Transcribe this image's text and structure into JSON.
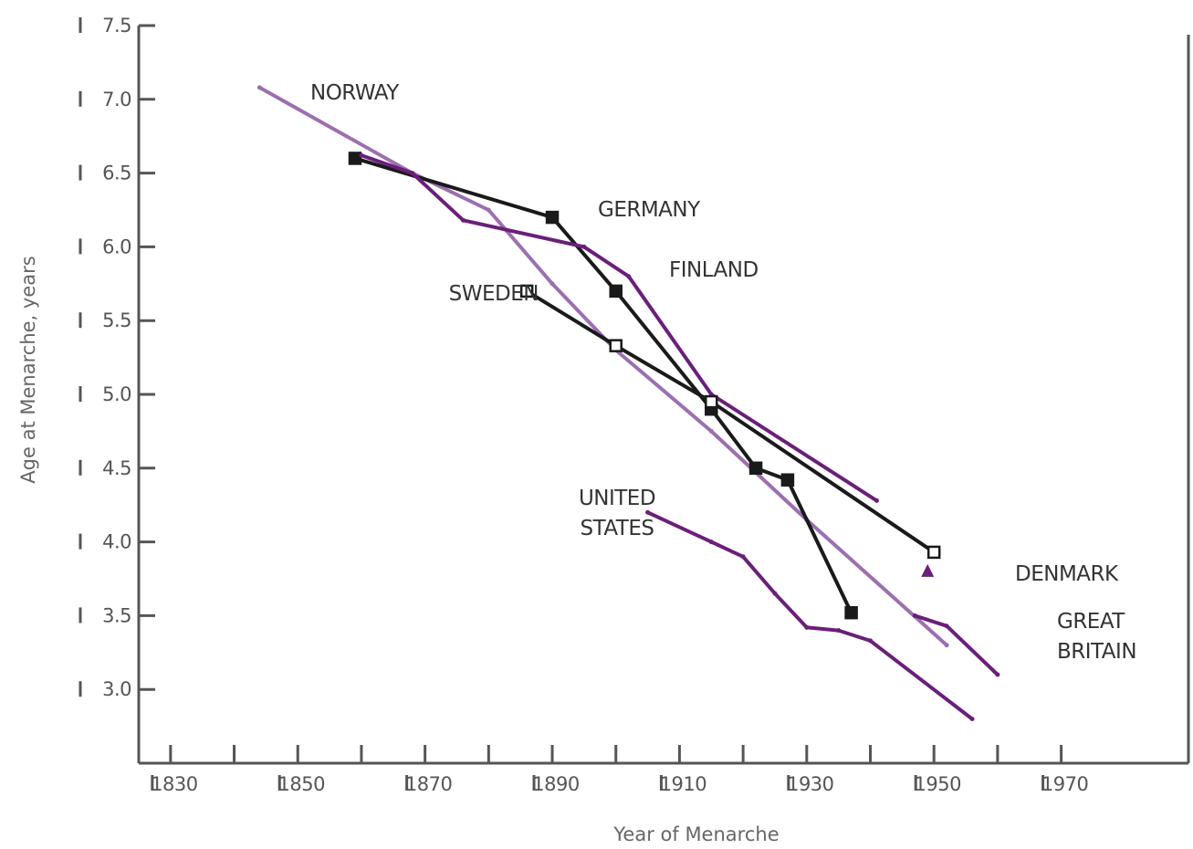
{
  "chart_data": {
    "type": "line",
    "title": "",
    "xlabel": "Year of Menarche",
    "ylabel": "Age at Menarche, years",
    "xlim": [
      1825,
      1990
    ],
    "ylim": [
      2.5,
      7.5
    ],
    "x_ticks": [
      1830,
      1850,
      1870,
      1890,
      1910,
      1930,
      1950,
      1970
    ],
    "x_ticks_minor": [
      1840,
      1860,
      1880,
      1900,
      1920,
      1940,
      1960
    ],
    "x_tick_labels": [
      "1830",
      "1850",
      "1870",
      "1890",
      "1910",
      "1930",
      "1950",
      "1970"
    ],
    "y_ticks": [
      3.0,
      3.5,
      4.0,
      4.5,
      5.0,
      5.5,
      6.0,
      6.5,
      7.0,
      7.5
    ],
    "y_tick_labels": [
      "3.0",
      "3.5",
      "4.0",
      "4.5",
      "5.0",
      "5.5",
      "6.0",
      "6.5",
      "7.0",
      "7.5"
    ],
    "grid": false,
    "legend": "none",
    "series": [
      {
        "name": "NORWAY",
        "label_lines": [
          "NORWAY"
        ],
        "color": "#9b6fb0",
        "marker": "none",
        "points": [
          [
            1844,
            7.08
          ],
          [
            1868,
            6.5
          ],
          [
            1880,
            6.25
          ],
          [
            1890,
            5.75
          ],
          [
            1900,
            5.3
          ],
          [
            1915,
            4.75
          ],
          [
            1930,
            4.15
          ],
          [
            1952,
            3.3
          ]
        ]
      },
      {
        "name": "GERMANY",
        "label_lines": [
          "GERMANY"
        ],
        "color": "#1a1a1a",
        "marker": "square",
        "marker_fill": "#1a1a1a",
        "points": [
          [
            1859,
            6.6
          ],
          [
            1890,
            6.2
          ],
          [
            1900,
            5.7
          ],
          [
            1915,
            4.9
          ],
          [
            1922,
            4.5
          ],
          [
            1927,
            4.42
          ],
          [
            1937,
            3.52
          ]
        ]
      },
      {
        "name": "FINLAND",
        "label_lines": [
          "FINLAND"
        ],
        "color": "#6a1f7a",
        "marker": "none",
        "points": [
          [
            1860,
            6.62
          ],
          [
            1868,
            6.5
          ],
          [
            1876,
            6.18
          ],
          [
            1895,
            6.0
          ],
          [
            1902,
            5.8
          ],
          [
            1915,
            5.0
          ],
          [
            1941,
            4.28
          ]
        ]
      },
      {
        "name": "SWEDEN",
        "label_lines": [
          "SWEDEN"
        ],
        "color": "#1a1a1a",
        "marker": "square",
        "marker_fill": "#ffffff",
        "points": [
          [
            1886,
            5.7
          ],
          [
            1900,
            5.33
          ],
          [
            1915,
            4.95
          ],
          [
            1950,
            3.93
          ]
        ]
      },
      {
        "name": "DENMARK",
        "label_lines": [
          "DENMARK"
        ],
        "color": "#6a1f7a",
        "marker": "triangle",
        "marker_fill": "#6a1f7a",
        "points": [
          [
            1949,
            3.8
          ]
        ]
      },
      {
        "name": "GREAT BRITAIN",
        "label_lines": [
          "GREAT",
          "BRITAIN"
        ],
        "color": "#6a1f7a",
        "marker": "none",
        "points": [
          [
            1947,
            3.5
          ],
          [
            1952,
            3.43
          ],
          [
            1960,
            3.1
          ]
        ]
      },
      {
        "name": "UNITED STATES",
        "label_lines": [
          "UNITED",
          "STATES"
        ],
        "color": "#6a1f7a",
        "marker": "none",
        "points": [
          [
            1905,
            4.2
          ],
          [
            1915,
            4.0
          ],
          [
            1920,
            3.9
          ],
          [
            1925,
            3.65
          ],
          [
            1930,
            3.42
          ],
          [
            1935,
            3.4
          ],
          [
            1940,
            3.33
          ],
          [
            1956,
            2.8
          ]
        ]
      }
    ]
  }
}
